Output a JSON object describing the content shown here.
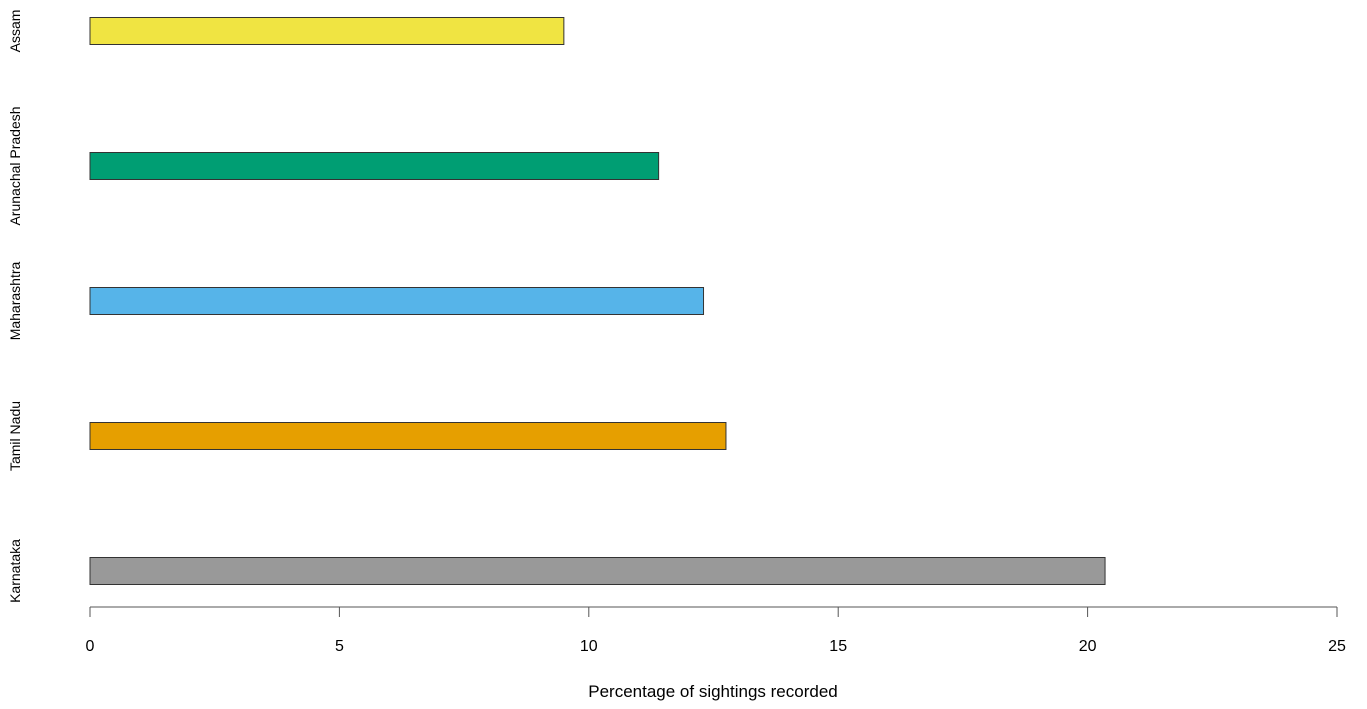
{
  "chart_data": {
    "type": "bar",
    "orientation": "horizontal",
    "categories": [
      "Karnataka",
      "Tamil Nadu",
      "Maharashtra",
      "Arunachal Pradesh",
      "Assam"
    ],
    "values": [
      20.35,
      12.75,
      12.3,
      11.4,
      9.5
    ],
    "colors": [
      "#999999",
      "#E69F00",
      "#56B4E9",
      "#009E73",
      "#F0E442"
    ],
    "xlabel": "Percentage of sightings recorded",
    "ylabel": "",
    "xlim": [
      0,
      25
    ],
    "xticks": [
      "0",
      "5",
      "10",
      "15",
      "20",
      "25"
    ],
    "grid": false,
    "legend": "none"
  }
}
